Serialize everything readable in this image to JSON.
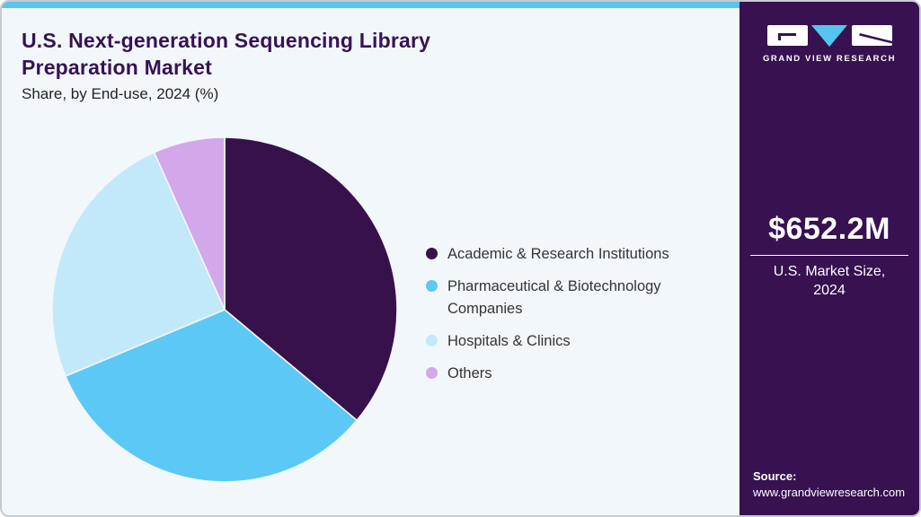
{
  "header": {
    "title_line1": "U.S. Next-generation Sequencing Library",
    "title_line2": "Preparation Market",
    "subtitle": "Share, by End-use, 2024 (%)"
  },
  "chart_data": {
    "type": "pie",
    "title": "U.S. Next-generation Sequencing Library Preparation Market Share, by End-use, 2024 (%)",
    "unit": "%",
    "start_angle_deg": 0,
    "direction": "clockwise",
    "values_estimated_from_angles": true,
    "legend_position": "right",
    "slices": [
      {
        "label": "Academic & Research Institutions",
        "value": 36.1,
        "color": "#37114B"
      },
      {
        "label": "Pharmaceutical & Biotechnology Companies",
        "value": 32.6,
        "color": "#5CC8F5"
      },
      {
        "label": "Hospitals & Clinics",
        "value": 24.6,
        "color": "#C2E9F9"
      },
      {
        "label": "Others",
        "value": 6.7,
        "color": "#D2A8EA"
      }
    ]
  },
  "sidebar": {
    "background": "#371150",
    "logo_text": "GRAND VIEW RESEARCH",
    "logo_accent": "#56C5EE",
    "market_size_value": "$652.2M",
    "market_size_label_line1": "U.S. Market Size,",
    "market_size_label_line2": "2024",
    "source_label": "Source:",
    "source_url": "www.grandviewresearch.com"
  },
  "card": {
    "background": "#F2F7FB",
    "top_strip_color": "#5BC3EE",
    "title_color": "#371353"
  }
}
